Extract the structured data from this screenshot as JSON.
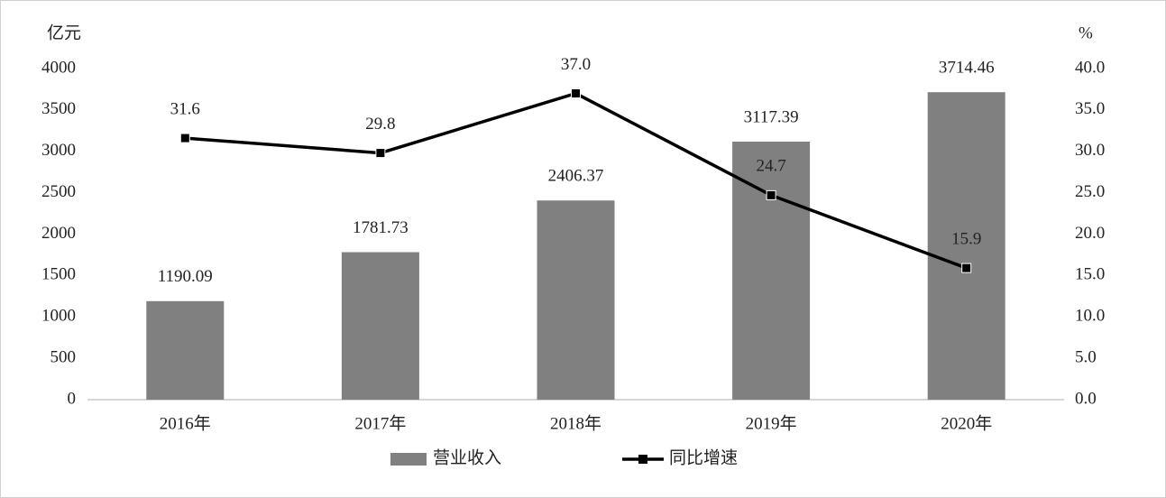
{
  "chart_data": {
    "type": "bar_line",
    "y_label": "亿元",
    "y2_label": "%",
    "categories": [
      "2016年",
      "2017年",
      "2018年",
      "2019年",
      "2020年"
    ],
    "series": [
      {
        "name": "营业收入",
        "type": "bar",
        "color": "#808080",
        "values": [
          1190.09,
          1781.73,
          2406.37,
          3117.39,
          3714.46
        ]
      },
      {
        "name": "同比增速",
        "type": "line",
        "axis": "y2",
        "color": "#000000",
        "values": [
          31.6,
          29.8,
          37.0,
          24.7,
          15.9
        ],
        "value_labels": [
          "31.6",
          "29.8",
          "37.0",
          "24.7",
          "15.9"
        ]
      }
    ],
    "ylim": [
      0,
      4000
    ],
    "yticks": [
      0,
      500,
      1000,
      1500,
      2000,
      2500,
      3000,
      3500,
      4000
    ],
    "y2lim": [
      0,
      40
    ],
    "y2ticks": [
      {
        "value": 0,
        "label": "0.0"
      },
      {
        "value": 5,
        "label": "5.0"
      },
      {
        "value": 10,
        "label": "10.0"
      },
      {
        "value": 15,
        "label": "15.0"
      },
      {
        "value": 20,
        "label": "20.0"
      },
      {
        "value": 25,
        "label": "25.0"
      },
      {
        "value": 30,
        "label": "30.0"
      },
      {
        "value": 35,
        "label": "35.0"
      },
      {
        "value": 40,
        "label": "40.0"
      }
    ],
    "grid": false
  }
}
